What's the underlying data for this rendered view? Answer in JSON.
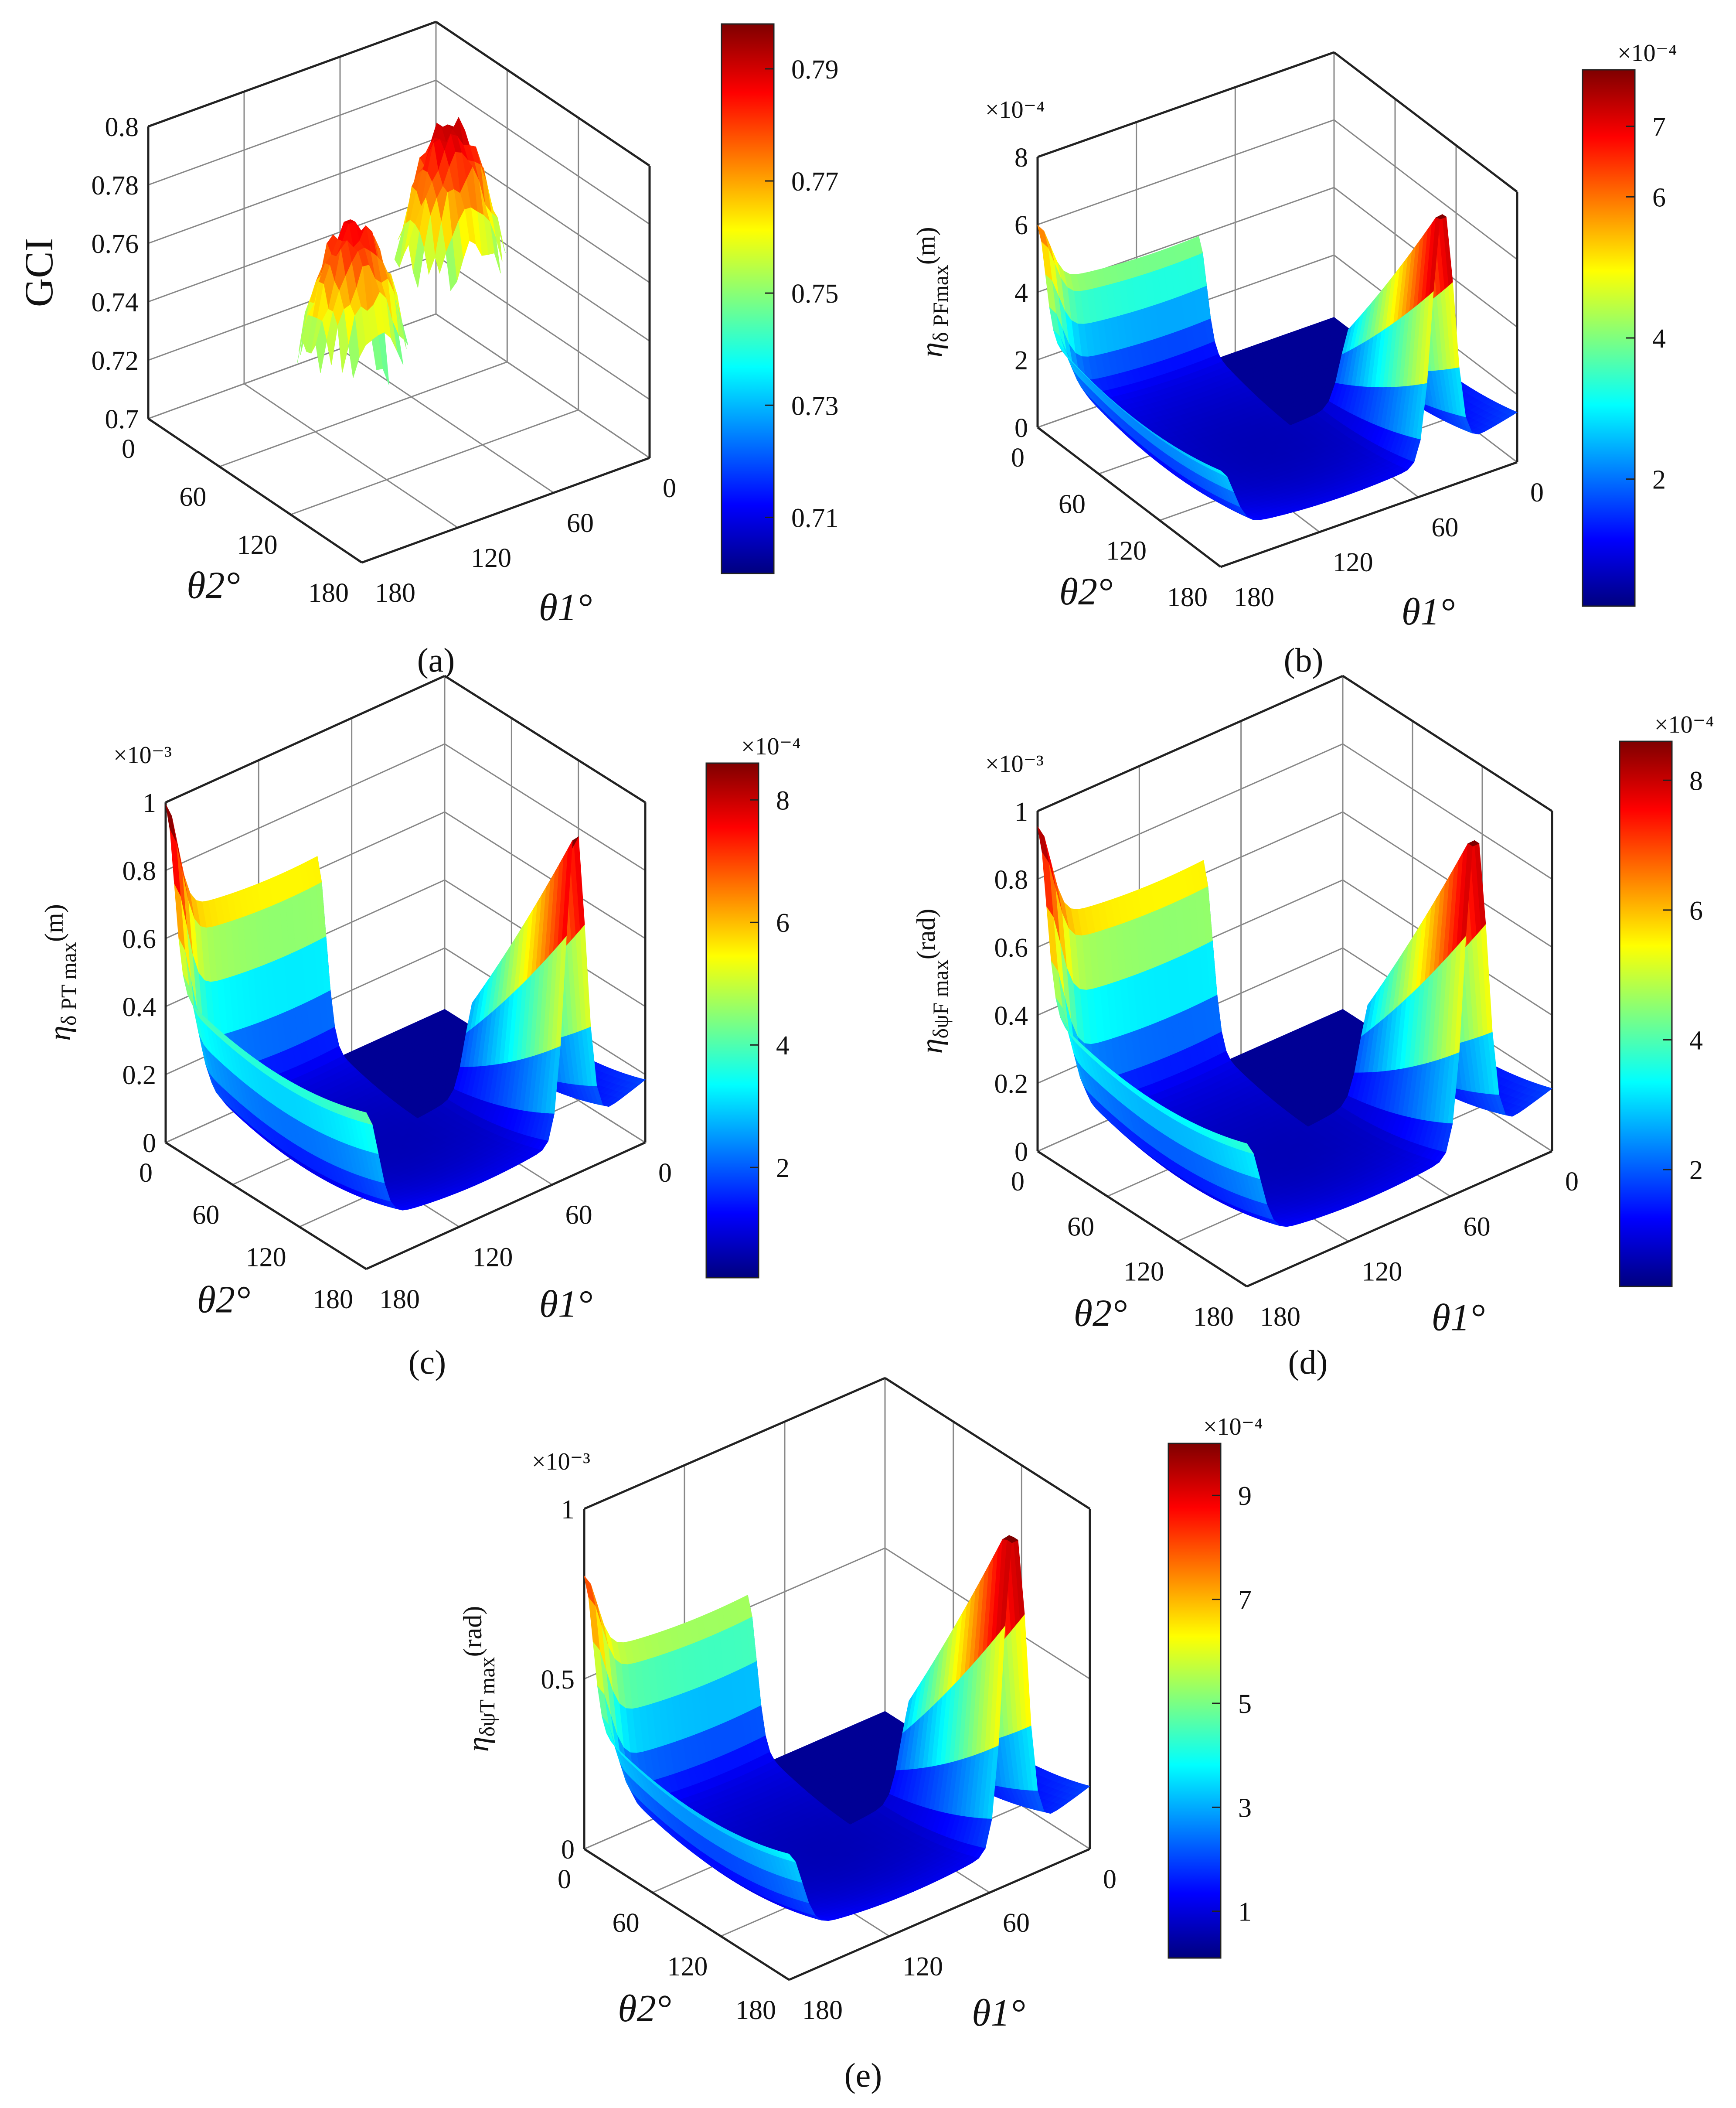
{
  "colormap": [
    "#00007f",
    "#0000ff",
    "#007fff",
    "#00ffff",
    "#7fff7f",
    "#ffff00",
    "#ff7f00",
    "#ff0000",
    "#7f0000"
  ],
  "theta_ticks": [
    "0",
    "60",
    "120",
    "180"
  ],
  "chart_data": [
    {
      "type": "surface3d",
      "caption": "(a)",
      "zlabel": "GCI",
      "zlabel_sub": "",
      "zlabel_tail": "",
      "z_multiplier": "",
      "zticks": [
        "0.7",
        "0.72",
        "0.74",
        "0.76",
        "0.78",
        "0.8"
      ],
      "zlim": [
        0.7,
        0.8
      ],
      "theta1_label": "θ1°",
      "theta2_label": "θ2°",
      "theta1_ticks": [
        "0",
        "60",
        "120",
        "180"
      ],
      "theta2_ticks": [
        "0",
        "60",
        "120",
        "180"
      ],
      "colorbar": {
        "ticks": [
          "0.71",
          "0.73",
          "0.75",
          "0.77",
          "0.79"
        ],
        "range": [
          0.7,
          0.798
        ],
        "multiplier": ""
      },
      "shape": "two-lobes",
      "peaks": [
        0.79,
        0.785
      ]
    },
    {
      "type": "surface3d",
      "caption": "(b)",
      "zlabel": "η",
      "zlabel_sub": "δ PFmax",
      "zlabel_tail": "(m)",
      "z_multiplier": "×10⁻⁴",
      "zticks": [
        "0",
        "2",
        "4",
        "6",
        "8"
      ],
      "zlim": [
        0,
        9
      ],
      "theta1_label": "θ1°",
      "theta2_label": "θ2°",
      "theta1_ticks": [
        "0",
        "60",
        "120",
        "180"
      ],
      "theta2_ticks": [
        "0",
        "60",
        "120",
        "180"
      ],
      "colorbar": {
        "ticks": [
          "2",
          "4",
          "6",
          "7"
        ],
        "range": [
          0.2,
          7.8
        ],
        "multiplier": "×10⁻⁴"
      },
      "shape": "valley",
      "peaks": [
        5.5,
        8.5,
        3.8
      ]
    },
    {
      "type": "surface3d",
      "caption": "(c)",
      "zlabel": "η",
      "zlabel_sub": "δ PT max",
      "zlabel_tail": "(m)",
      "z_multiplier": "×10⁻³",
      "zticks": [
        "0",
        "0.2",
        "0.4",
        "0.6",
        "0.8",
        "1"
      ],
      "zlim": [
        0,
        1
      ],
      "theta1_label": "θ1°",
      "theta2_label": "θ2°",
      "theta1_ticks": [
        "0",
        "60",
        "120",
        "180"
      ],
      "theta2_ticks": [
        "0",
        "60",
        "120",
        "180"
      ],
      "colorbar": {
        "ticks": [
          "2",
          "4",
          "6",
          "8"
        ],
        "range": [
          0.2,
          8.6
        ],
        "multiplier": "×10⁻⁴"
      },
      "shape": "valley",
      "peaks": [
        0.85,
        0.9,
        0.63
      ]
    },
    {
      "type": "surface3d",
      "caption": "(d)",
      "zlabel": "η",
      "zlabel_sub": "δψF max",
      "zlabel_tail": "(rad)",
      "z_multiplier": "×10⁻³",
      "zticks": [
        "0",
        "0.2",
        "0.4",
        "0.6",
        "0.8",
        "1"
      ],
      "zlim": [
        0,
        1
      ],
      "theta1_label": "θ1°",
      "theta2_label": "θ2°",
      "theta1_ticks": [
        "0",
        "60",
        "120",
        "180"
      ],
      "theta2_ticks": [
        "0",
        "60",
        "120",
        "180"
      ],
      "colorbar": {
        "ticks": [
          "2",
          "4",
          "6",
          "8"
        ],
        "range": [
          0.2,
          8.6
        ],
        "multiplier": "×10⁻⁴"
      },
      "shape": "valley",
      "peaks": [
        0.85,
        0.95,
        0.55
      ]
    },
    {
      "type": "surface3d",
      "caption": "(e)",
      "zlabel": "η",
      "zlabel_sub": "δψT max",
      "zlabel_tail": "(rad)",
      "z_multiplier": "×10⁻³",
      "zticks": [
        "0",
        "0.5",
        "1"
      ],
      "zlim": [
        0,
        1
      ],
      "theta1_label": "θ1°",
      "theta2_label": "θ2°",
      "theta1_ticks": [
        "0",
        "60",
        "120",
        "180"
      ],
      "theta2_ticks": [
        "0",
        "60",
        "120",
        "180"
      ],
      "colorbar": {
        "ticks": [
          "1",
          "3",
          "5",
          "7",
          "9"
        ],
        "range": [
          0.1,
          10
        ],
        "multiplier": "×10⁻⁴"
      },
      "shape": "valley",
      "peaks": [
        0.68,
        0.98,
        0.45
      ]
    }
  ]
}
